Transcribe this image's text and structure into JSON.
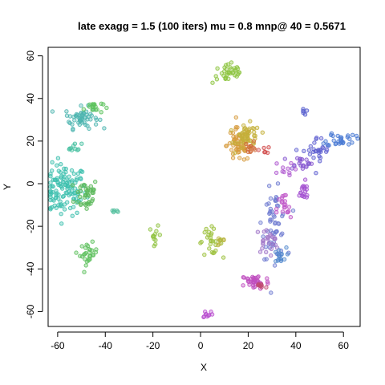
{
  "chart_data": {
    "type": "scatter",
    "title": "late exagg = 1.5 (100 iters) mu = 0.8 mnp@ 40 = 0.5671",
    "xlabel": "X",
    "ylabel": "Y",
    "xlim": [
      -64,
      67
    ],
    "ylim": [
      -67,
      64
    ],
    "xticks": [
      -60,
      -40,
      -20,
      0,
      20,
      40,
      60
    ],
    "yticks": [
      -60,
      -40,
      -20,
      0,
      20,
      40,
      60
    ],
    "xtick_labels": [
      "-60",
      "-40",
      "-20",
      "0",
      "20",
      "40",
      "60"
    ],
    "ytick_labels": [
      "-60",
      "-40",
      "-20",
      "0",
      "20",
      "40",
      "60"
    ],
    "grid": false,
    "legend": "none",
    "marker": "open circle",
    "clusters": [
      {
        "cx": -57,
        "cy": -3,
        "sx": 4.5,
        "sy": 6,
        "n": 120,
        "color": "#3dbfae"
      },
      {
        "cx": -48,
        "cy": -5,
        "sx": 2.5,
        "sy": 4,
        "n": 40,
        "color": "#5bb85a"
      },
      {
        "cx": -50,
        "cy": 31,
        "sx": 3.5,
        "sy": 2.5,
        "n": 55,
        "color": "#4db5b0"
      },
      {
        "cx": -45,
        "cy": 36,
        "sx": 2,
        "sy": 1.5,
        "n": 18,
        "color": "#5cc25c"
      },
      {
        "cx": -53,
        "cy": 17,
        "sx": 1.5,
        "sy": 1,
        "n": 10,
        "color": "#45c0a0"
      },
      {
        "cx": -47,
        "cy": -33,
        "sx": 1.8,
        "sy": 2.5,
        "n": 28,
        "color": "#5dbf5d"
      },
      {
        "cx": -36,
        "cy": -13,
        "sx": 1,
        "sy": 0.8,
        "n": 5,
        "color": "#4dbd9a"
      },
      {
        "cx": -19,
        "cy": -24,
        "sx": 1.2,
        "sy": 2,
        "n": 12,
        "color": "#8fc23f"
      },
      {
        "cx": 4,
        "cy": -27,
        "sx": 2.5,
        "sy": 3,
        "n": 28,
        "color": "#9bc03a"
      },
      {
        "cx": 9,
        "cy": -27,
        "sx": 1.2,
        "sy": 1,
        "n": 6,
        "color": "#b7b33a"
      },
      {
        "cx": 12,
        "cy": 52,
        "sx": 3.5,
        "sy": 2.5,
        "n": 35,
        "color": "#8cc43e"
      },
      {
        "cx": 16,
        "cy": 18,
        "sx": 2.5,
        "sy": 4,
        "n": 60,
        "color": "#d69a3b"
      },
      {
        "cx": 20,
        "cy": 22,
        "sx": 2.5,
        "sy": 3,
        "n": 50,
        "color": "#c4b03a"
      },
      {
        "cx": 21,
        "cy": 17,
        "sx": 1.2,
        "sy": 1.5,
        "n": 12,
        "color": "#d06a3a"
      },
      {
        "cx": 27,
        "cy": 16,
        "sx": 1.2,
        "sy": 0.8,
        "n": 6,
        "color": "#d04a4a"
      },
      {
        "cx": 31,
        "cy": -19,
        "sx": 2.5,
        "sy": 8,
        "n": 55,
        "color": "#6e7ad0"
      },
      {
        "cx": 28,
        "cy": -27,
        "sx": 2.5,
        "sy": 3,
        "n": 25,
        "color": "#a076c8"
      },
      {
        "cx": 33,
        "cy": -34,
        "sx": 1.5,
        "sy": 2,
        "n": 15,
        "color": "#4f86cc"
      },
      {
        "cx": 35,
        "cy": -12,
        "sx": 1.5,
        "sy": 4,
        "n": 20,
        "color": "#c057c8"
      },
      {
        "cx": 23,
        "cy": -46,
        "sx": 3,
        "sy": 1.8,
        "n": 40,
        "color": "#c04fc0"
      },
      {
        "cx": 25,
        "cy": -48,
        "sx": 1.2,
        "sy": 1,
        "n": 8,
        "color": "#c04a70"
      },
      {
        "cx": 3,
        "cy": -61,
        "sx": 1.2,
        "sy": 1,
        "n": 10,
        "color": "#b84ecf"
      },
      {
        "cx": 49,
        "cy": 15,
        "sx": 3,
        "sy": 3.5,
        "n": 30,
        "color": "#5e5fd0"
      },
      {
        "cx": 59,
        "cy": 21,
        "sx": 3,
        "sy": 1.8,
        "n": 30,
        "color": "#4a7ad4"
      },
      {
        "cx": 42,
        "cy": 10,
        "sx": 2.5,
        "sy": 1.5,
        "n": 20,
        "color": "#8858d0"
      },
      {
        "cx": 43,
        "cy": -4,
        "sx": 1.5,
        "sy": 2.5,
        "n": 18,
        "color": "#a24fd0"
      },
      {
        "cx": 43,
        "cy": 34,
        "sx": 0.8,
        "sy": 0.8,
        "n": 5,
        "color": "#5058cc"
      },
      {
        "cx": 34,
        "cy": 6,
        "sx": 2.5,
        "sy": 2,
        "n": 10,
        "color": "#b05ad0"
      }
    ]
  }
}
